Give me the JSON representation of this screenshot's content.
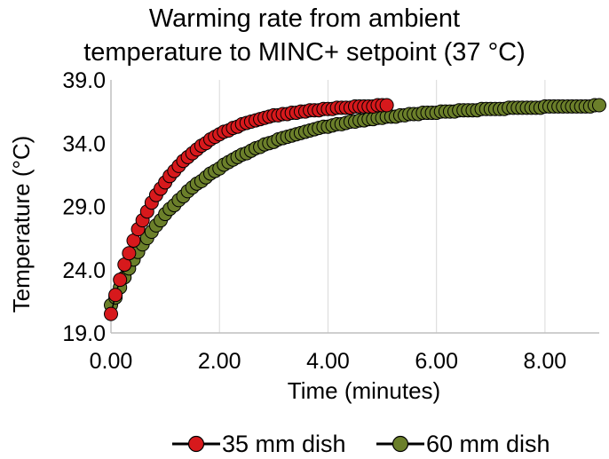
{
  "chart_data": {
    "type": "scatter",
    "title_lines": [
      "Warming rate from ambient",
      "temperature to MINC+ setpoint (37 °C)"
    ],
    "xlabel": "Time (minutes)",
    "ylabel": "Temperature (°C)",
    "xlim": [
      0,
      9
    ],
    "ylim": [
      19,
      39
    ],
    "xticks": [
      "0.00",
      "2.00",
      "4.00",
      "6.00",
      "8.00"
    ],
    "yticks": [
      "19.0",
      "24.0",
      "29.0",
      "34.0",
      "39.0"
    ],
    "grid": "vertical",
    "legend_position": "bottom",
    "series": [
      {
        "name": "35 mm dish",
        "color": "#d7191c",
        "x": [
          0.0,
          0.083,
          0.167,
          0.25,
          0.333,
          0.417,
          0.5,
          0.583,
          0.667,
          0.75,
          0.833,
          0.917,
          1.0,
          1.083,
          1.167,
          1.25,
          1.333,
          1.417,
          1.5,
          1.583,
          1.667,
          1.75,
          1.833,
          1.917,
          2.0,
          2.083,
          2.167,
          2.25,
          2.333,
          2.417,
          2.5,
          2.583,
          2.667,
          2.75,
          2.833,
          2.917,
          3.0,
          3.083,
          3.167,
          3.25,
          3.333,
          3.417,
          3.5,
          3.583,
          3.667,
          3.75,
          3.833,
          3.917,
          4.0,
          4.083,
          4.167,
          4.25,
          4.333,
          4.417,
          4.5,
          4.583,
          4.667,
          4.75,
          4.833,
          4.917,
          5.0,
          5.083
        ],
        "y": [
          20.5,
          22.0,
          23.2,
          24.4,
          25.3,
          26.3,
          27.2,
          27.9,
          28.6,
          29.3,
          29.9,
          30.4,
          30.9,
          31.4,
          31.8,
          32.2,
          32.6,
          32.9,
          33.2,
          33.5,
          33.8,
          34.0,
          34.3,
          34.5,
          34.7,
          34.9,
          35.0,
          35.2,
          35.3,
          35.5,
          35.6,
          35.7,
          35.8,
          35.9,
          36.0,
          36.1,
          36.2,
          36.2,
          36.3,
          36.3,
          36.4,
          36.4,
          36.5,
          36.5,
          36.6,
          36.6,
          36.6,
          36.7,
          36.7,
          36.7,
          36.8,
          36.8,
          36.8,
          36.8,
          36.9,
          36.9,
          36.9,
          36.9,
          36.9,
          37.0,
          37.0,
          37.0
        ]
      },
      {
        "name": "60 mm dish",
        "color": "#6b7f2a",
        "x": [
          0.0,
          0.083,
          0.167,
          0.25,
          0.333,
          0.417,
          0.5,
          0.583,
          0.667,
          0.75,
          0.833,
          0.917,
          1.0,
          1.083,
          1.167,
          1.25,
          1.333,
          1.417,
          1.5,
          1.583,
          1.667,
          1.75,
          1.833,
          1.917,
          2.0,
          2.083,
          2.167,
          2.25,
          2.333,
          2.417,
          2.5,
          2.583,
          2.667,
          2.75,
          2.833,
          2.917,
          3.0,
          3.083,
          3.167,
          3.25,
          3.333,
          3.417,
          3.5,
          3.583,
          3.667,
          3.75,
          3.833,
          3.917,
          4.0,
          4.083,
          4.167,
          4.25,
          4.333,
          4.417,
          4.5,
          4.583,
          4.667,
          4.75,
          4.833,
          4.917,
          5.0,
          5.083,
          5.167,
          5.25,
          5.333,
          5.417,
          5.5,
          5.583,
          5.667,
          5.75,
          5.833,
          5.917,
          6.0,
          6.083,
          6.167,
          6.25,
          6.333,
          6.417,
          6.5,
          6.583,
          6.667,
          6.75,
          6.833,
          6.917,
          7.0,
          7.083,
          7.167,
          7.25,
          7.333,
          7.417,
          7.5,
          7.583,
          7.667,
          7.75,
          7.833,
          7.917,
          8.0,
          8.083,
          8.167,
          8.25,
          8.333,
          8.417,
          8.5,
          8.583,
          8.667,
          8.75,
          8.833,
          8.917,
          9.0
        ],
        "y": [
          21.2,
          21.8,
          22.6,
          23.4,
          24.1,
          24.8,
          25.4,
          26.0,
          26.5,
          27.0,
          27.5,
          27.9,
          28.4,
          28.8,
          29.1,
          29.5,
          29.8,
          30.2,
          30.5,
          30.8,
          31.0,
          31.3,
          31.6,
          31.8,
          32.0,
          32.3,
          32.5,
          32.7,
          32.9,
          33.1,
          33.2,
          33.4,
          33.6,
          33.7,
          33.9,
          34.0,
          34.1,
          34.3,
          34.4,
          34.5,
          34.6,
          34.7,
          34.8,
          34.9,
          35.0,
          35.1,
          35.2,
          35.3,
          35.3,
          35.4,
          35.5,
          35.5,
          35.6,
          35.7,
          35.7,
          35.8,
          35.8,
          35.9,
          35.9,
          36.0,
          36.0,
          36.1,
          36.1,
          36.1,
          36.2,
          36.2,
          36.3,
          36.3,
          36.3,
          36.4,
          36.4,
          36.4,
          36.4,
          36.5,
          36.5,
          36.5,
          36.5,
          36.6,
          36.6,
          36.6,
          36.6,
          36.6,
          36.7,
          36.7,
          36.7,
          36.7,
          36.7,
          36.7,
          36.8,
          36.8,
          36.8,
          36.8,
          36.8,
          36.8,
          36.8,
          36.8,
          36.9,
          36.9,
          36.9,
          36.9,
          36.9,
          36.9,
          36.9,
          36.9,
          36.9,
          36.9,
          36.9,
          37.0,
          37.0
        ]
      }
    ]
  }
}
